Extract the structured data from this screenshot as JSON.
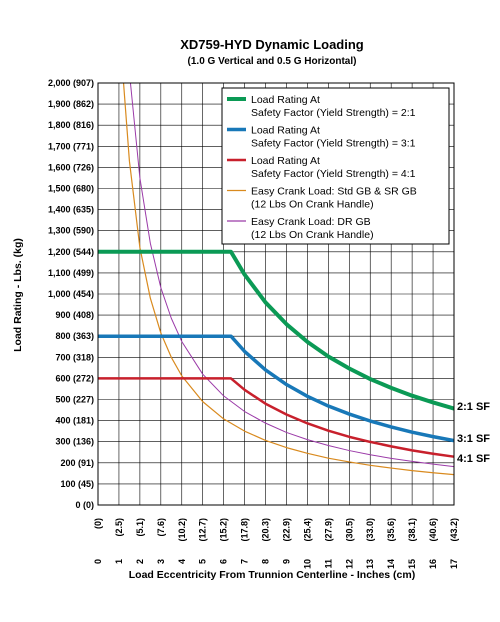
{
  "chart_data": {
    "type": "line",
    "title": "XD759-HYD Dynamic Loading",
    "subtitle": "(1.0 G Vertical and 0.5 G Horizontal)",
    "xlabel": "Load Eccentricity From Trunnion Centerline - Inches (cm)",
    "ylabel": "Load Rating - Lbs. (kg)",
    "xlim": [
      0,
      17
    ],
    "ylim": [
      0,
      2000
    ],
    "grid": true,
    "legend_position": "top-right",
    "x_ticks": [
      0,
      1,
      2,
      3,
      4,
      5,
      6,
      7,
      8,
      9,
      10,
      11,
      12,
      13,
      14,
      15,
      16,
      17
    ],
    "x_tick_labels": [
      "0",
      "1",
      "2",
      "3",
      "4",
      "5",
      "6",
      "7",
      "8",
      "9",
      "10",
      "11",
      "12",
      "13",
      "14",
      "15",
      "16",
      "17"
    ],
    "x_tick_labels_cm": [
      "(0)",
      "(2.5)",
      "(5.1)",
      "(7.6)",
      "(10.2)",
      "(12.7)",
      "(15.2)",
      "(17.8)",
      "(20.3)",
      "(22.9)",
      "(25.4)",
      "(27.9)",
      "(30.5)",
      "(33.0)",
      "(35.6)",
      "(38.1)",
      "(40.6)",
      "(43.2)"
    ],
    "y_ticks": [
      0,
      100,
      200,
      300,
      400,
      500,
      600,
      700,
      800,
      900,
      1000,
      1100,
      1200,
      1300,
      1400,
      1500,
      1600,
      1700,
      1800,
      1900,
      2000
    ],
    "y_tick_labels": [
      "0 (0)",
      "100 (45)",
      "200 (91)",
      "300 (136)",
      "400 (181)",
      "500 (227)",
      "600 (272)",
      "700 (318)",
      "800 (363)",
      "900 (408)",
      "1,000 (454)",
      "1,100 (499)",
      "1,200 (544)",
      "1,300 (590)",
      "1,400 (635)",
      "1,500 (680)",
      "1,600 (726)",
      "1,700 (771)",
      "1,800 (816)",
      "1,900 (862)",
      "2,000 (907)"
    ],
    "series": [
      {
        "name": "Load Rating At Safety Factor (Yield Strength) = 2:1",
        "legend_lines": [
          "Load Rating At",
          "Safety Factor (Yield Strength) = 2:1"
        ],
        "color": "#0b9a55",
        "width": 4,
        "end_label": "2:1 SF",
        "x": [
          0,
          1,
          2,
          3,
          4,
          5,
          6,
          6.35,
          7,
          8,
          9,
          10,
          11,
          12,
          13,
          14,
          15,
          16,
          17
        ],
        "y": [
          1200,
          1200,
          1200,
          1200,
          1200,
          1200,
          1200,
          1200,
          1092,
          960,
          857,
          773,
          704,
          647,
          597,
          555,
          518,
          486,
          457
        ]
      },
      {
        "name": "Load Rating At Safety Factor (Yield Strength) = 3:1",
        "legend_lines": [
          "Load Rating At",
          "Safety Factor (Yield Strength) = 3:1"
        ],
        "color": "#1878b8",
        "width": 3.5,
        "end_label": "3:1 SF",
        "x": [
          0,
          1,
          2,
          3,
          4,
          5,
          6,
          6.35,
          7,
          8,
          9,
          10,
          11,
          12,
          13,
          14,
          15,
          16,
          17
        ],
        "y": [
          800,
          800,
          800,
          800,
          800,
          800,
          800,
          800,
          728,
          640,
          571,
          515,
          469,
          431,
          398,
          370,
          345,
          324,
          305
        ]
      },
      {
        "name": "Load Rating At Safety Factor (Yield Strength) = 4:1",
        "legend_lines": [
          "Load Rating At",
          "Safety Factor (Yield Strength) = 4:1"
        ],
        "color": "#c8202c",
        "width": 2.5,
        "end_label": "4:1 SF",
        "x": [
          0,
          1,
          2,
          3,
          4,
          5,
          6,
          6.35,
          7,
          8,
          9,
          10,
          11,
          12,
          13,
          14,
          15,
          16,
          17
        ],
        "y": [
          600,
          600,
          600,
          600,
          600,
          600,
          600,
          600,
          546,
          480,
          429,
          387,
          352,
          323,
          299,
          278,
          259,
          243,
          229
        ]
      },
      {
        "name": "Easy Crank Load: Std GB & SR GB (12 Lbs On Crank Handle)",
        "legend_lines": [
          "Easy Crank Load: Std GB & SR GB",
          "(12 Lbs On Crank Handle)"
        ],
        "color": "#d98a1e",
        "width": 1.2,
        "end_label": "",
        "x": [
          1.22,
          1.5,
          2,
          2.5,
          3,
          3.5,
          4,
          5,
          6,
          7,
          8,
          9,
          10,
          11,
          12,
          13,
          14,
          15,
          16,
          17
        ],
        "y": [
          2000,
          1630,
          1220,
          980,
          815,
          700,
          612,
          490,
          408,
          350,
          306,
          272,
          245,
          222,
          204,
          188,
          175,
          163,
          153,
          144
        ]
      },
      {
        "name": "Easy Crank Load: DR GB (12 Lbs On Crank Handle)",
        "legend_lines": [
          "Easy Crank Load: DR GB",
          "(12 Lbs On Crank Handle)"
        ],
        "color": "#9b3aa8",
        "width": 1,
        "end_label": "",
        "x": [
          1.55,
          2,
          2.5,
          3,
          3.5,
          4,
          5,
          6,
          7,
          8,
          9,
          10,
          11,
          12,
          13,
          14,
          15,
          16,
          17
        ],
        "y": [
          2000,
          1550,
          1240,
          1030,
          885,
          775,
          620,
          517,
          443,
          388,
          344,
          310,
          282,
          258,
          238,
          221,
          207,
          194,
          182
        ]
      }
    ]
  }
}
